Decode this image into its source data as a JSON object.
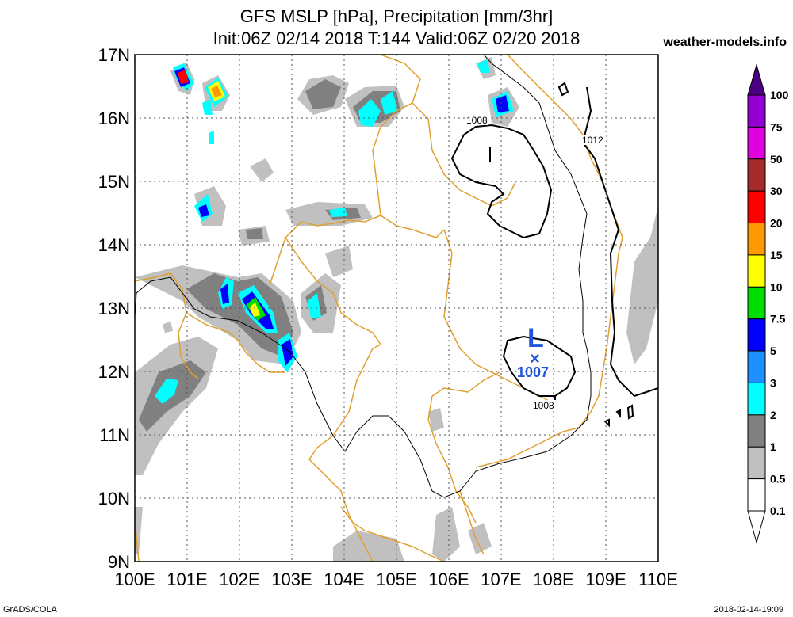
{
  "title_line1": "GFS MSLP [hPa], Precipitation [mm/3hr]",
  "title_line2": "Init:06Z 02/14 2018 T:144 Valid:06Z 02/20 2018",
  "site": "weather-models.info",
  "footer_left": "GrADS/COLA",
  "footer_right": "2018-02-14-19:09",
  "lat_labels": [
    "17N",
    "16N",
    "15N",
    "14N",
    "13N",
    "12N",
    "11N",
    "10N",
    "9N"
  ],
  "lon_labels": [
    "100E",
    "101E",
    "102E",
    "103E",
    "104E",
    "105E",
    "106E",
    "107E",
    "108E",
    "109E",
    "110E"
  ],
  "legend": [
    {
      "label": "100",
      "color": "#4b0082"
    },
    {
      "label": "75",
      "color": "#9400d3"
    },
    {
      "label": "50",
      "color": "#e000e0"
    },
    {
      "label": "30",
      "color": "#a52a2a"
    },
    {
      "label": "20",
      "color": "#ff0000"
    },
    {
      "label": "15",
      "color": "#ff9900"
    },
    {
      "label": "10",
      "color": "#ffff00"
    },
    {
      "label": "7.5",
      "color": "#00dd00"
    },
    {
      "label": "5",
      "color": "#0000ff"
    },
    {
      "label": "3",
      "color": "#1e90ff"
    },
    {
      "label": "2",
      "color": "#00ffff"
    },
    {
      "label": "1",
      "color": "#808080"
    },
    {
      "label": "0.5",
      "color": "#c0c0c0"
    },
    {
      "label": "0.1",
      "color": "#ffffff"
    }
  ],
  "isobar_labels": [
    "1008",
    "1012",
    "1008"
  ],
  "low_marker": {
    "letter": "L",
    "symbol": "×",
    "value": "1007"
  }
}
